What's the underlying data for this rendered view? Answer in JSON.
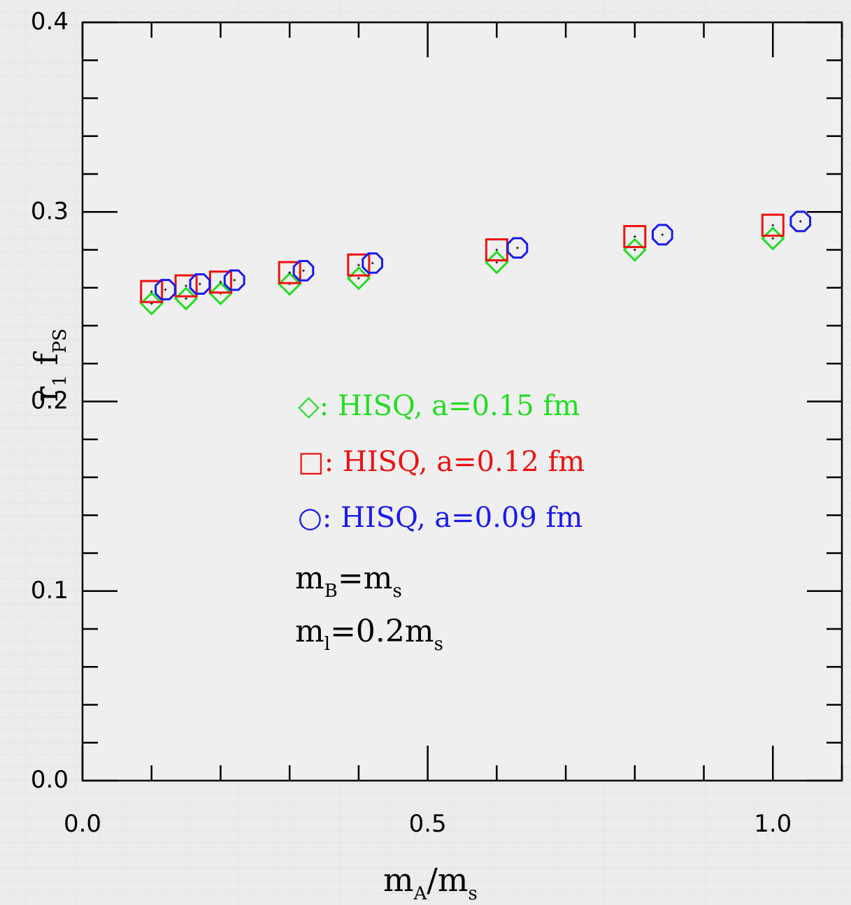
{
  "chart_data": {
    "type": "scatter",
    "xlim": [
      0.0,
      1.1
    ],
    "ylim": [
      0.0,
      0.4
    ],
    "x_ticks": [
      "0.0",
      "0.5",
      "1.0"
    ],
    "y_ticks": [
      "0.0",
      "0.1",
      "0.2",
      "0.3",
      "0.4"
    ],
    "xlabel": {
      "main": "m",
      "sub": "A",
      "tail": "/m",
      "sub2": "s"
    },
    "ylabel": {
      "main": "r",
      "sub": "1",
      "main2": "f",
      "sub2": "PS"
    },
    "series": [
      {
        "name": "HISQ, a=0.15 fm",
        "marker": "diamond",
        "color": "#22dd22",
        "legend_label": "◇: HISQ, a=0.15 fm",
        "points": [
          {
            "x": 0.1,
            "y": 0.2517
          },
          {
            "x": 0.15,
            "y": 0.2543
          },
          {
            "x": 0.2,
            "y": 0.257
          },
          {
            "x": 0.3,
            "y": 0.262
          },
          {
            "x": 0.4,
            "y": 0.265
          },
          {
            "x": 0.6,
            "y": 0.2734
          },
          {
            "x": 0.8,
            "y": 0.28
          },
          {
            "x": 1.0,
            "y": 0.286
          }
        ]
      },
      {
        "name": "HISQ, a=0.12 fm",
        "marker": "square",
        "color": "#ee1111",
        "legend_label": "□: HISQ, a=0.12 fm",
        "points": [
          {
            "x": 0.1,
            "y": 0.258
          },
          {
            "x": 0.15,
            "y": 0.261
          },
          {
            "x": 0.2,
            "y": 0.263
          },
          {
            "x": 0.3,
            "y": 0.268
          },
          {
            "x": 0.4,
            "y": 0.272
          },
          {
            "x": 0.6,
            "y": 0.28
          },
          {
            "x": 0.8,
            "y": 0.287
          },
          {
            "x": 1.0,
            "y": 0.293
          }
        ]
      },
      {
        "name": "HISQ, a=0.09 fm",
        "marker": "octagon",
        "color": "#1a1aee",
        "legend_label": "○: HISQ, a=0.09 fm",
        "points": [
          {
            "x": 0.12,
            "y": 0.259
          },
          {
            "x": 0.17,
            "y": 0.262
          },
          {
            "x": 0.22,
            "y": 0.264
          },
          {
            "x": 0.32,
            "y": 0.269
          },
          {
            "x": 0.42,
            "y": 0.273
          },
          {
            "x": 0.63,
            "y": 0.281
          },
          {
            "x": 0.84,
            "y": 0.288
          },
          {
            "x": 1.04,
            "y": 0.295
          }
        ]
      }
    ],
    "annotations": [
      {
        "main": "m",
        "sub": "B",
        "rest": "=m",
        "sub2": "s"
      },
      {
        "main": "m",
        "sub": "l",
        "rest": "=0.2m",
        "sub2": "s"
      }
    ]
  }
}
